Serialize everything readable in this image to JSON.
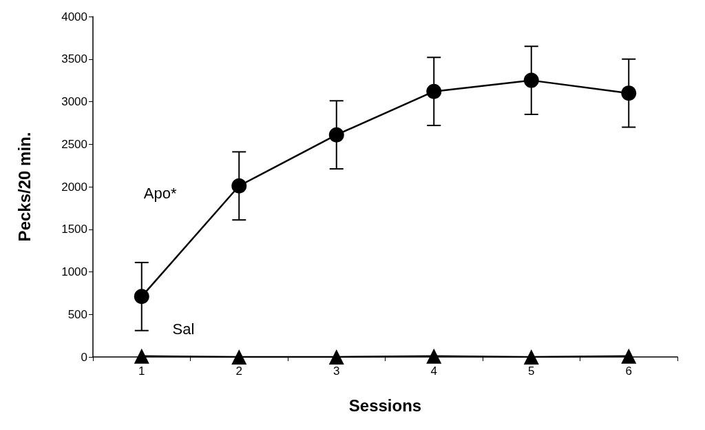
{
  "chart_data": {
    "type": "line",
    "xlabel": "Sessions",
    "ylabel": "Pecks/20 min.",
    "categories": [
      "1",
      "2",
      "3",
      "4",
      "5",
      "6"
    ],
    "series": [
      {
        "name": "Apo*",
        "color": "#000000",
        "marker": "circle",
        "values": [
          710,
          2010,
          2610,
          3120,
          3250,
          3100
        ],
        "errors": [
          400,
          400,
          400,
          400,
          400,
          400
        ]
      },
      {
        "name": "Sal",
        "color": "#000000",
        "marker": "triangle",
        "values": [
          10,
          0,
          0,
          10,
          0,
          10
        ]
      }
    ],
    "ylim": [
      0,
      4000
    ],
    "yticks": [
      0,
      500,
      1000,
      1500,
      2000,
      2500,
      3000,
      3500,
      4000
    ],
    "grid": false,
    "legend": false,
    "line_style": "solid"
  }
}
